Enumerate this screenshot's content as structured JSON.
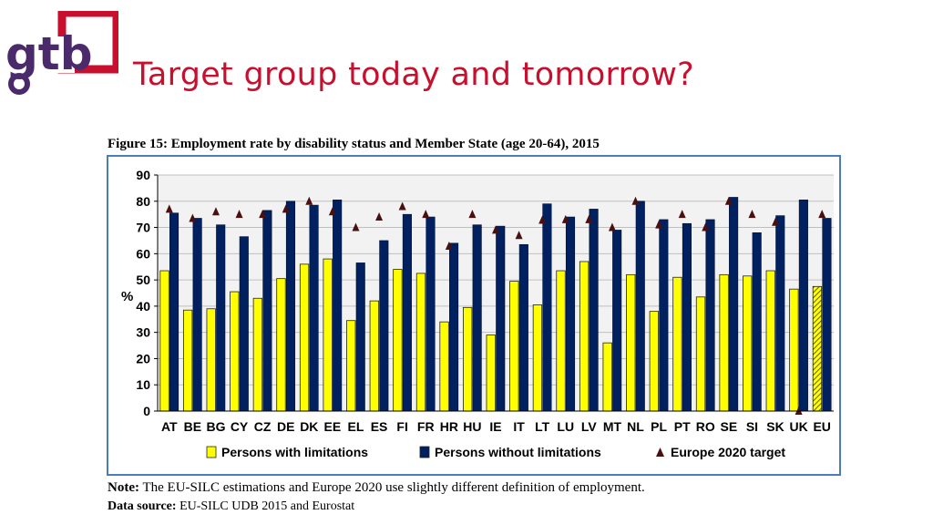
{
  "logo": {
    "text": "gtb",
    "primary_color": "#4b2a6b",
    "accent_color": "#c8102e"
  },
  "slide": {
    "title": "Target group today and tomorrow?"
  },
  "figure": {
    "caption": "Figure 15: Employment rate by disability status and Member State (age 20-64), 2015",
    "note_label": "Note:",
    "note_text": "The EU-SILC estimations and Europe 2020 use slightly different definition of employment.",
    "source_label": "Data source:",
    "source_text": "EU-SILC UDB 2015 and Eurostat"
  },
  "chart_data": {
    "type": "bar",
    "title": "Employment rate by disability status and Member State (age 20-64), 2015",
    "xlabel": "",
    "ylabel": "%",
    "ylim": [
      0,
      90
    ],
    "yticks": [
      0,
      10,
      20,
      30,
      40,
      50,
      60,
      70,
      80,
      90
    ],
    "grid": true,
    "legend_position": "bottom",
    "categories": [
      "AT",
      "BE",
      "BG",
      "CY",
      "CZ",
      "DE",
      "DK",
      "EE",
      "EL",
      "ES",
      "FI",
      "FR",
      "HR",
      "HU",
      "IE",
      "IT",
      "LT",
      "LU",
      "LV",
      "MT",
      "NL",
      "PL",
      "PT",
      "RO",
      "SE",
      "SI",
      "SK",
      "UK",
      "EU"
    ],
    "series": [
      {
        "name": "Persons with limitations",
        "kind": "bar",
        "color": "#ffff00",
        "values": [
          53.5,
          38.5,
          39,
          45.5,
          43,
          50.5,
          56,
          58,
          34.5,
          42,
          54,
          52.5,
          34,
          39.5,
          29,
          49.5,
          40.5,
          53.5,
          57,
          26,
          52,
          38,
          51,
          43.5,
          52,
          51.5,
          53.5,
          46.5,
          47.5
        ]
      },
      {
        "name": "Persons without limitations",
        "kind": "bar",
        "color": "#002060",
        "values": [
          75.5,
          73.5,
          71,
          66.5,
          76.5,
          80,
          78.5,
          80.5,
          56.5,
          65,
          75,
          74,
          64,
          71,
          70.5,
          63.5,
          79,
          74,
          77,
          69,
          80,
          73,
          71.5,
          73,
          81.5,
          68,
          74.5,
          80.5,
          73.5
        ]
      },
      {
        "name": "Europe 2020 target",
        "kind": "marker",
        "color": "#4a1010",
        "values": [
          77,
          73.5,
          76,
          75,
          75,
          77,
          80,
          76,
          70,
          74,
          78,
          75,
          62.9,
          75,
          69,
          67,
          72.8,
          73,
          73,
          70,
          80,
          71,
          75,
          70,
          80,
          75,
          72,
          0,
          75
        ]
      }
    ]
  }
}
